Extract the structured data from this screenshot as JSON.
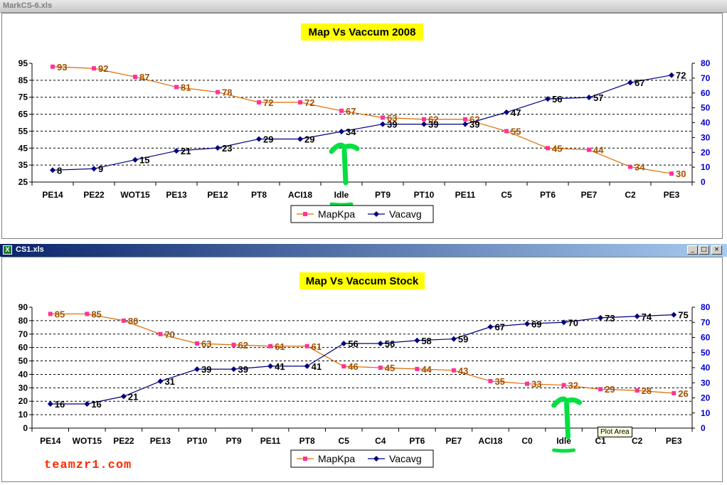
{
  "windows": [
    {
      "file_name": "MarkCS-6.xls",
      "chart_data": {
        "type": "line",
        "title": "Map Vs Vaccum 2008",
        "categories": [
          "PE14",
          "PE22",
          "WOT15",
          "PE13",
          "PE12",
          "PT8",
          "ACI18",
          "Idle",
          "PT9",
          "PT10",
          "PE11",
          "C5",
          "PT6",
          "PE7",
          "C2",
          "PE3"
        ],
        "series": [
          {
            "name": "MapKpa",
            "axis": "left",
            "color": "#e06a00",
            "marker_color": "#ff3399",
            "label_color": "#a05000",
            "values": [
              93,
              92,
              87,
              81,
              78,
              72,
              72,
              67,
              63,
              62,
              62,
              55,
              45,
              44,
              34,
              30
            ]
          },
          {
            "name": "Vacavg",
            "axis": "right",
            "color": "#000080",
            "marker_color": "#000080",
            "label_color": "#000000",
            "values": [
              8,
              9,
              15,
              21,
              23,
              29,
              29,
              34,
              39,
              39,
              39,
              47,
              56,
              57,
              67,
              72
            ]
          }
        ],
        "y_left": {
          "min": 25,
          "max": 95,
          "ticks": [
            25,
            35,
            45,
            55,
            65,
            75,
            85,
            95
          ]
        },
        "y_right": {
          "min": 0,
          "max": 80,
          "ticks": [
            0,
            10,
            20,
            30,
            40,
            50,
            60,
            70,
            80
          ]
        },
        "grid": true,
        "legend_position": "bottom",
        "annotation": {
          "type": "arrow",
          "color": "#00e040",
          "category": "Idle"
        }
      }
    },
    {
      "file_name": "CS1.xls",
      "chart_data": {
        "type": "line",
        "title": "Map Vs Vaccum Stock",
        "categories": [
          "PE14",
          "WOT15",
          "PE22",
          "PE13",
          "PT10",
          "PT9",
          "PE11",
          "PT8",
          "C5",
          "C4",
          "PT6",
          "PE7",
          "ACI18",
          "C0",
          "Idle",
          "C1",
          "C2",
          "PE3"
        ],
        "series": [
          {
            "name": "MapKpa",
            "axis": "left",
            "color": "#e06a00",
            "marker_color": "#ff3399",
            "label_color": "#a05000",
            "values": [
              85,
              85,
              80,
              70,
              63,
              62,
              61,
              61,
              46,
              45,
              44,
              43,
              35,
              33,
              32,
              29,
              28,
              26
            ]
          },
          {
            "name": "Vacavg",
            "axis": "right",
            "color": "#000080",
            "marker_color": "#000080",
            "label_color": "#000000",
            "values": [
              16,
              16,
              21,
              31,
              39,
              39,
              41,
              41,
              56,
              56,
              58,
              59,
              67,
              69,
              70,
              73,
              74,
              75
            ]
          }
        ],
        "y_left": {
          "min": 0,
          "max": 90,
          "ticks": [
            0,
            10,
            20,
            30,
            40,
            50,
            60,
            70,
            80,
            90
          ]
        },
        "y_right": {
          "min": 0,
          "max": 80,
          "ticks": [
            0,
            10,
            20,
            30,
            40,
            50,
            60,
            70,
            80
          ]
        },
        "grid": true,
        "legend_position": "bottom",
        "annotation": {
          "type": "arrow",
          "color": "#00e040",
          "category": "Idle"
        }
      }
    }
  ],
  "tooltip": "Plot Area",
  "watermark": "teamzr1.com",
  "window_buttons": {
    "minimize": "_",
    "restore": "□",
    "close": "×"
  }
}
